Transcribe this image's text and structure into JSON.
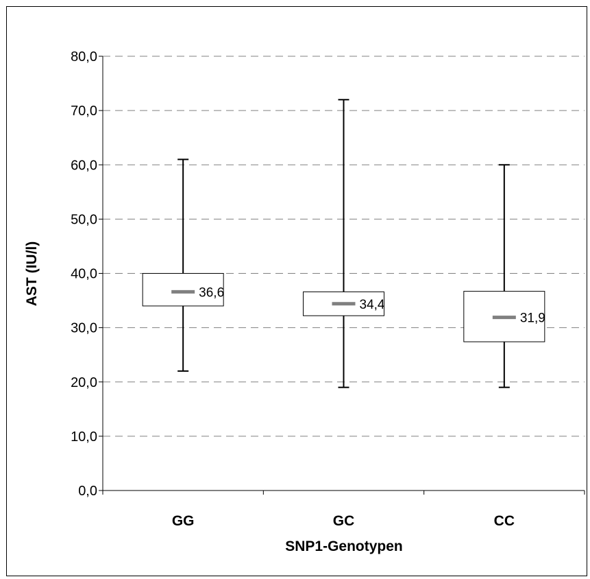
{
  "chart_data": {
    "type": "boxplot",
    "xlabel": "SNP1-Genotypen",
    "ylabel": "AST (IU/l)",
    "ylim": [
      0,
      80
    ],
    "yticks": [
      "0,0",
      "10,0",
      "20,0",
      "30,0",
      "40,0",
      "50,0",
      "60,0",
      "70,0",
      "80,0"
    ],
    "ytick_values": [
      0,
      10,
      20,
      30,
      40,
      50,
      60,
      70,
      80
    ],
    "grid": true,
    "categories": [
      "GG",
      "GC",
      "CC"
    ],
    "boxes": [
      {
        "category": "GG",
        "min": 22,
        "q1": 34,
        "median": 36.6,
        "q3": 40,
        "max": 61,
        "median_label": "36,6"
      },
      {
        "category": "GC",
        "min": 19,
        "q1": 32.2,
        "median": 34.4,
        "q3": 36.6,
        "max": 72,
        "median_label": "34,4"
      },
      {
        "category": "CC",
        "min": 19,
        "q1": 27.4,
        "median": 31.9,
        "q3": 36.7,
        "max": 60,
        "median_label": "31,9"
      }
    ],
    "colors": {
      "median": "#808080",
      "grid": "#808080",
      "box": "#000000"
    }
  }
}
